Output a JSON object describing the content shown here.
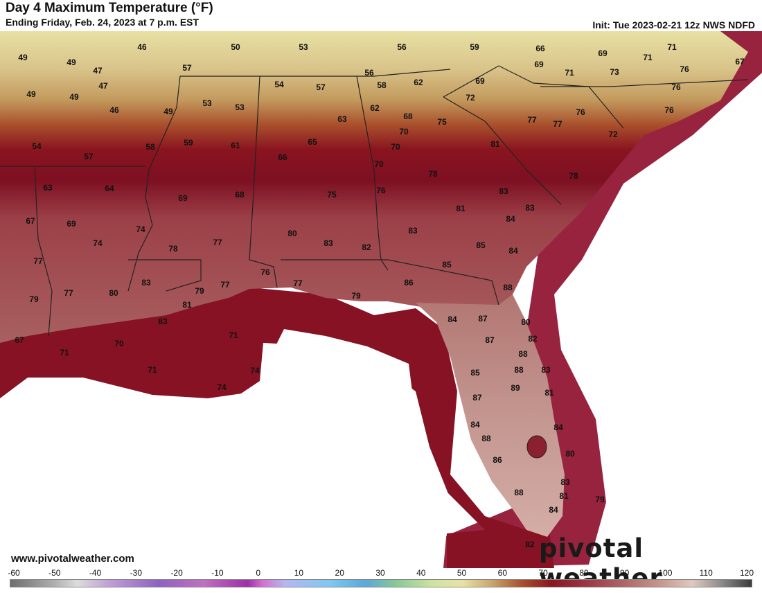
{
  "header": {
    "title": "Day 4 Maximum Temperature (°F)",
    "subtitle": "Ending Friday, Feb. 24, 2023 at 7 p.m. EST",
    "init": "Init: Tue 2023-02-21 12z NWS NDFD"
  },
  "footer": {
    "website": "www.pivotalweather.com",
    "brand": "pivotal weather"
  },
  "legend": {
    "ticks": [
      "-60",
      "-50",
      "-40",
      "-30",
      "-20",
      "-10",
      "0",
      "10",
      "20",
      "30",
      "40",
      "50",
      "60",
      "70",
      "80",
      "90",
      "100",
      "110",
      "120"
    ]
  },
  "colors": {
    "ocean": "#ffffff",
    "cool_land": "#e8e1a4",
    "mild_land": "#c8a46c",
    "warm_land": "#a9502c",
    "hot_band": "#8a1420",
    "coastal_water": "#861224",
    "far_water": "#97233f",
    "florida_land": "#c69a94",
    "border": "#222222"
  },
  "temperatures": [
    {
      "value": "49"
    },
    {
      "value": "46"
    },
    {
      "value": "50"
    },
    {
      "value": "53"
    },
    {
      "value": "56"
    },
    {
      "value": "59"
    },
    {
      "value": "66"
    },
    {
      "value": "69"
    },
    {
      "value": "71"
    },
    {
      "value": "71"
    },
    {
      "value": "49"
    },
    {
      "value": "47"
    },
    {
      "value": "47"
    },
    {
      "value": "49"
    },
    {
      "value": "57"
    },
    {
      "value": "69"
    },
    {
      "value": "71"
    },
    {
      "value": "73"
    },
    {
      "value": "76"
    },
    {
      "value": "67"
    },
    {
      "value": "49"
    },
    {
      "value": "46"
    },
    {
      "value": "49"
    },
    {
      "value": "53"
    },
    {
      "value": "53"
    },
    {
      "value": "56"
    },
    {
      "value": "54"
    },
    {
      "value": "57"
    },
    {
      "value": "58"
    },
    {
      "value": "62"
    },
    {
      "value": "69"
    },
    {
      "value": "72"
    },
    {
      "value": "76"
    },
    {
      "value": "76"
    },
    {
      "value": "62"
    },
    {
      "value": "63"
    },
    {
      "value": "68"
    },
    {
      "value": "75"
    },
    {
      "value": "77"
    },
    {
      "value": "77"
    },
    {
      "value": "76"
    },
    {
      "value": "72"
    },
    {
      "value": "54"
    },
    {
      "value": "58"
    },
    {
      "value": "59"
    },
    {
      "value": "61"
    },
    {
      "value": "65"
    },
    {
      "value": "70"
    },
    {
      "value": "70"
    },
    {
      "value": "81"
    },
    {
      "value": "57"
    },
    {
      "value": "66"
    },
    {
      "value": "70"
    },
    {
      "value": "78"
    },
    {
      "value": "78"
    },
    {
      "value": "63"
    },
    {
      "value": "64"
    },
    {
      "value": "69"
    },
    {
      "value": "68"
    },
    {
      "value": "75"
    },
    {
      "value": "76"
    },
    {
      "value": "83"
    },
    {
      "value": "67"
    },
    {
      "value": "69"
    },
    {
      "value": "74"
    },
    {
      "value": "81"
    },
    {
      "value": "83"
    },
    {
      "value": "74"
    },
    {
      "value": "78"
    },
    {
      "value": "77"
    },
    {
      "value": "80"
    },
    {
      "value": "83"
    },
    {
      "value": "82"
    },
    {
      "value": "83"
    },
    {
      "value": "84"
    },
    {
      "value": "77"
    },
    {
      "value": "85"
    },
    {
      "value": "84"
    },
    {
      "value": "85"
    },
    {
      "value": "79"
    },
    {
      "value": "77"
    },
    {
      "value": "80"
    },
    {
      "value": "83"
    },
    {
      "value": "79"
    },
    {
      "value": "77"
    },
    {
      "value": "76"
    },
    {
      "value": "77"
    },
    {
      "value": "86"
    },
    {
      "value": "88"
    },
    {
      "value": "81"
    },
    {
      "value": "79"
    },
    {
      "value": "83"
    },
    {
      "value": "84"
    },
    {
      "value": "87"
    },
    {
      "value": "80"
    },
    {
      "value": "67"
    },
    {
      "value": "70"
    },
    {
      "value": "71"
    },
    {
      "value": "87"
    },
    {
      "value": "82"
    },
    {
      "value": "71"
    },
    {
      "value": "71"
    },
    {
      "value": "74"
    },
    {
      "value": "88"
    },
    {
      "value": "85"
    },
    {
      "value": "88"
    },
    {
      "value": "83"
    },
    {
      "value": "74"
    },
    {
      "value": "89"
    },
    {
      "value": "81"
    },
    {
      "value": "87"
    },
    {
      "value": "84"
    },
    {
      "value": "84"
    },
    {
      "value": "88"
    },
    {
      "value": "80"
    },
    {
      "value": "86"
    },
    {
      "value": "83"
    },
    {
      "value": "88"
    },
    {
      "value": "81"
    },
    {
      "value": "79"
    },
    {
      "value": "84"
    },
    {
      "value": "82"
    }
  ]
}
